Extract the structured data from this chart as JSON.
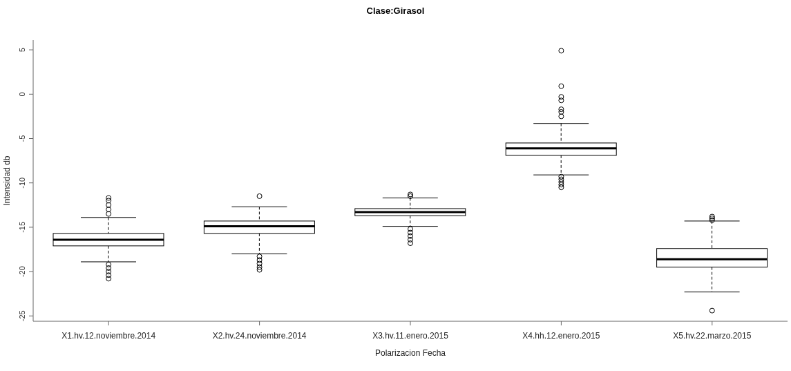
{
  "chart_data": {
    "type": "box",
    "title": "Clase:Girasol",
    "xlabel": "Polarizacion Fecha",
    "ylabel": "Intensidad db",
    "categories": [
      "X1.hv.12.noviembre.2014",
      "X2.hv.24.noviembre.2014",
      "X3.hv.11.enero.2015",
      "X4.hh.12.enero.2015",
      "X5.hv.22.marzo.2015"
    ],
    "boxes": [
      {
        "low": -18.9,
        "q1": -17.1,
        "median": -16.4,
        "q3": -15.7,
        "high": -13.9,
        "outliers": [
          -11.7,
          -12.0,
          -12.5,
          -13.0,
          -13.5,
          -19.2,
          -19.6,
          -20.0,
          -20.4,
          -20.8
        ]
      },
      {
        "low": -18.0,
        "q1": -15.7,
        "median": -14.9,
        "q3": -14.3,
        "high": -12.7,
        "outliers": [
          -11.5,
          -18.3,
          -18.7,
          -19.1,
          -19.5,
          -19.8
        ]
      },
      {
        "low": -14.9,
        "q1": -13.7,
        "median": -13.3,
        "q3": -12.9,
        "high": -11.7,
        "outliers": [
          -11.3,
          -11.5,
          -15.2,
          -15.6,
          -16.0,
          -16.4,
          -16.8
        ]
      },
      {
        "low": -9.1,
        "q1": -6.9,
        "median": -6.1,
        "q3": -5.5,
        "high": -3.3,
        "outliers": [
          4.9,
          0.9,
          -0.3,
          -0.7,
          -1.7,
          -2.0,
          -2.5,
          -9.3,
          -9.6,
          -9.9,
          -10.2,
          -10.5
        ]
      },
      {
        "low": -22.3,
        "q1": -19.5,
        "median": -18.6,
        "q3": -17.4,
        "high": -14.3,
        "outliers": [
          -13.8,
          -14.0,
          -14.2,
          -24.4
        ]
      }
    ],
    "color": "#000000",
    "ylim": [
      -25.6,
      6.1
    ],
    "yticks": [
      -25,
      -20,
      -15,
      -10,
      -5,
      0,
      5
    ]
  }
}
